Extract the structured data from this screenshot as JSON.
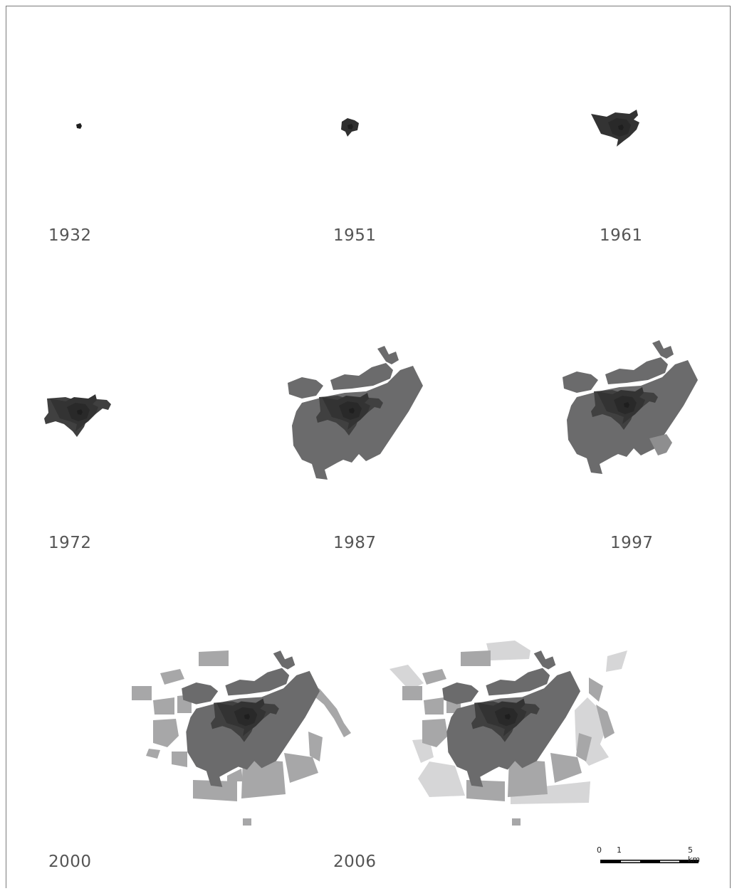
{
  "years": [
    "1932",
    "1951",
    "1961",
    "1972",
    "1987",
    "1997",
    "2000",
    "2006"
  ],
  "scale_bar": {
    "zero": "0",
    "one": "1",
    "five": "5 km"
  },
  "colors": {
    "core": "#2e2e2e",
    "early": "#3f3f3f",
    "mid": "#6b6b6c",
    "late": "#a7a7a8",
    "latest": "#d6d6d7",
    "label": "#555555"
  }
}
